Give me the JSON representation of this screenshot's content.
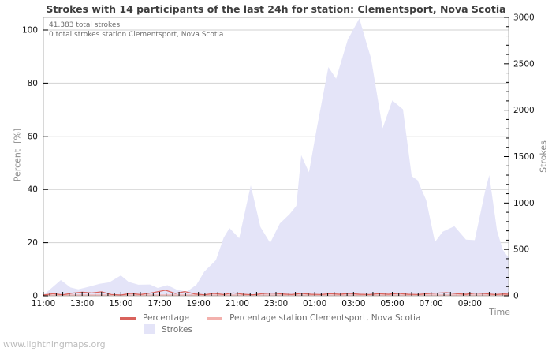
{
  "watermark": "www.lightningmaps.org",
  "chart_data": {
    "type": "area",
    "title": "Strokes with 14 participants of the last 24h for station: Clementsport, Nova Scotia",
    "annotations": [
      "41.383 total strokes",
      "0 total strokes station Clementsport, Nova Scotia"
    ],
    "grid": true,
    "legend_position": "bottom-center",
    "x_axis": {
      "label": "Time",
      "start": "11:00",
      "span_hours": 24,
      "major_tick_hours": 1,
      "minor_tick_minutes": 20,
      "tick_labels": [
        "11:00",
        "13:00",
        "15:00",
        "17:00",
        "19:00",
        "21:00",
        "23:00",
        "01:00",
        "03:00",
        "05:00",
        "07:00",
        "09:00"
      ],
      "tick_label_hours": [
        0,
        2,
        4,
        6,
        8,
        10,
        12,
        14,
        16,
        18,
        20,
        22
      ]
    },
    "y_left": {
      "label": "Percent  [%]",
      "range": [
        0,
        100
      ],
      "ticks": [
        0,
        20,
        40,
        60,
        80,
        100
      ]
    },
    "y_right": {
      "label": "Strokes",
      "range": [
        0,
        3000
      ],
      "ticks": [
        0,
        500,
        1000,
        1500,
        2000,
        2500,
        3000
      ],
      "minor_step": 100
    },
    "colors": {
      "grid": "#d2d2d2",
      "border": "#b0b0b0",
      "tick": "#000000"
    },
    "series": [
      {
        "name": "Percentage",
        "type": "line",
        "axis": "left",
        "color": "#d9625c",
        "points": [
          [
            0,
            0.3
          ],
          [
            0.5,
            0.8
          ],
          [
            1,
            0.4
          ],
          [
            1.5,
            1.0
          ],
          [
            2,
            1.4
          ],
          [
            2.5,
            1.1
          ],
          [
            3,
            1.5
          ],
          [
            3.5,
            0.5
          ],
          [
            4,
            0.3
          ],
          [
            4.5,
            0.9
          ],
          [
            5,
            0.5
          ],
          [
            5.5,
            1.0
          ],
          [
            6,
            1.7
          ],
          [
            6.3,
            2.1
          ],
          [
            6.8,
            0.9
          ],
          [
            7.3,
            1.6
          ],
          [
            7.8,
            0.7
          ],
          [
            8.3,
            0.4
          ],
          [
            8.8,
            0.9
          ],
          [
            9.3,
            0.5
          ],
          [
            9.8,
            1.1
          ],
          [
            10.3,
            0.6
          ],
          [
            10.8,
            0.4
          ],
          [
            11.3,
            0.8
          ],
          [
            11.8,
            1.0
          ],
          [
            12.3,
            0.7
          ],
          [
            12.8,
            0.5
          ],
          [
            13.3,
            0.9
          ],
          [
            13.8,
            0.6
          ],
          [
            14.3,
            0.5
          ],
          [
            14.8,
            0.8
          ],
          [
            15.3,
            0.6
          ],
          [
            15.8,
            0.9
          ],
          [
            16.3,
            0.6
          ],
          [
            16.8,
            0.5
          ],
          [
            17.3,
            0.8
          ],
          [
            17.8,
            0.6
          ],
          [
            18.3,
            0.9
          ],
          [
            18.8,
            0.6
          ],
          [
            19.3,
            0.5
          ],
          [
            19.8,
            0.8
          ],
          [
            20.3,
            1.0
          ],
          [
            20.8,
            1.2
          ],
          [
            21.3,
            0.8
          ],
          [
            21.8,
            0.6
          ],
          [
            22.3,
            1.0
          ],
          [
            22.8,
            0.8
          ],
          [
            23.3,
            0.5
          ],
          [
            23.8,
            0.7
          ],
          [
            24,
            0.6
          ]
        ]
      },
      {
        "name": "Percentage station Clementsport, Nova Scotia",
        "type": "line",
        "axis": "left",
        "color": "#f3b1ad",
        "points": [
          [
            0,
            0
          ],
          [
            24,
            0
          ]
        ]
      },
      {
        "name": "Strokes",
        "type": "area",
        "axis": "right",
        "color": "#e4e4f8",
        "points": [
          [
            0,
            10
          ],
          [
            0.4,
            80
          ],
          [
            0.9,
            170
          ],
          [
            1.4,
            90
          ],
          [
            1.8,
            70
          ],
          [
            2.3,
            95
          ],
          [
            2.9,
            130
          ],
          [
            3.4,
            145
          ],
          [
            4.0,
            220
          ],
          [
            4.4,
            150
          ],
          [
            4.9,
            120
          ],
          [
            5.5,
            122
          ],
          [
            5.9,
            85
          ],
          [
            6.4,
            115
          ],
          [
            6.9,
            65
          ],
          [
            7.4,
            45
          ],
          [
            7.9,
            120
          ],
          [
            8.3,
            260
          ],
          [
            8.9,
            385
          ],
          [
            9.3,
            625
          ],
          [
            9.6,
            730
          ],
          [
            10.1,
            620
          ],
          [
            10.7,
            1190
          ],
          [
            11.2,
            740
          ],
          [
            11.7,
            570
          ],
          [
            12.2,
            780
          ],
          [
            12.7,
            880
          ],
          [
            13.05,
            970
          ],
          [
            13.3,
            1515
          ],
          [
            13.7,
            1330
          ],
          [
            14.1,
            1800
          ],
          [
            14.7,
            2465
          ],
          [
            15.1,
            2340
          ],
          [
            15.7,
            2760
          ],
          [
            16.3,
            2990
          ],
          [
            16.7,
            2700
          ],
          [
            16.9,
            2560
          ],
          [
            17.5,
            1805
          ],
          [
            18.0,
            2105
          ],
          [
            18.55,
            2010
          ],
          [
            19.0,
            1290
          ],
          [
            19.3,
            1245
          ],
          [
            19.75,
            1030
          ],
          [
            20.2,
            580
          ],
          [
            20.6,
            690
          ],
          [
            21.2,
            750
          ],
          [
            21.8,
            605
          ],
          [
            22.25,
            600
          ],
          [
            22.8,
            1140
          ],
          [
            23.0,
            1300
          ],
          [
            23.4,
            700
          ],
          [
            23.7,
            495
          ],
          [
            24,
            410
          ]
        ]
      }
    ]
  }
}
